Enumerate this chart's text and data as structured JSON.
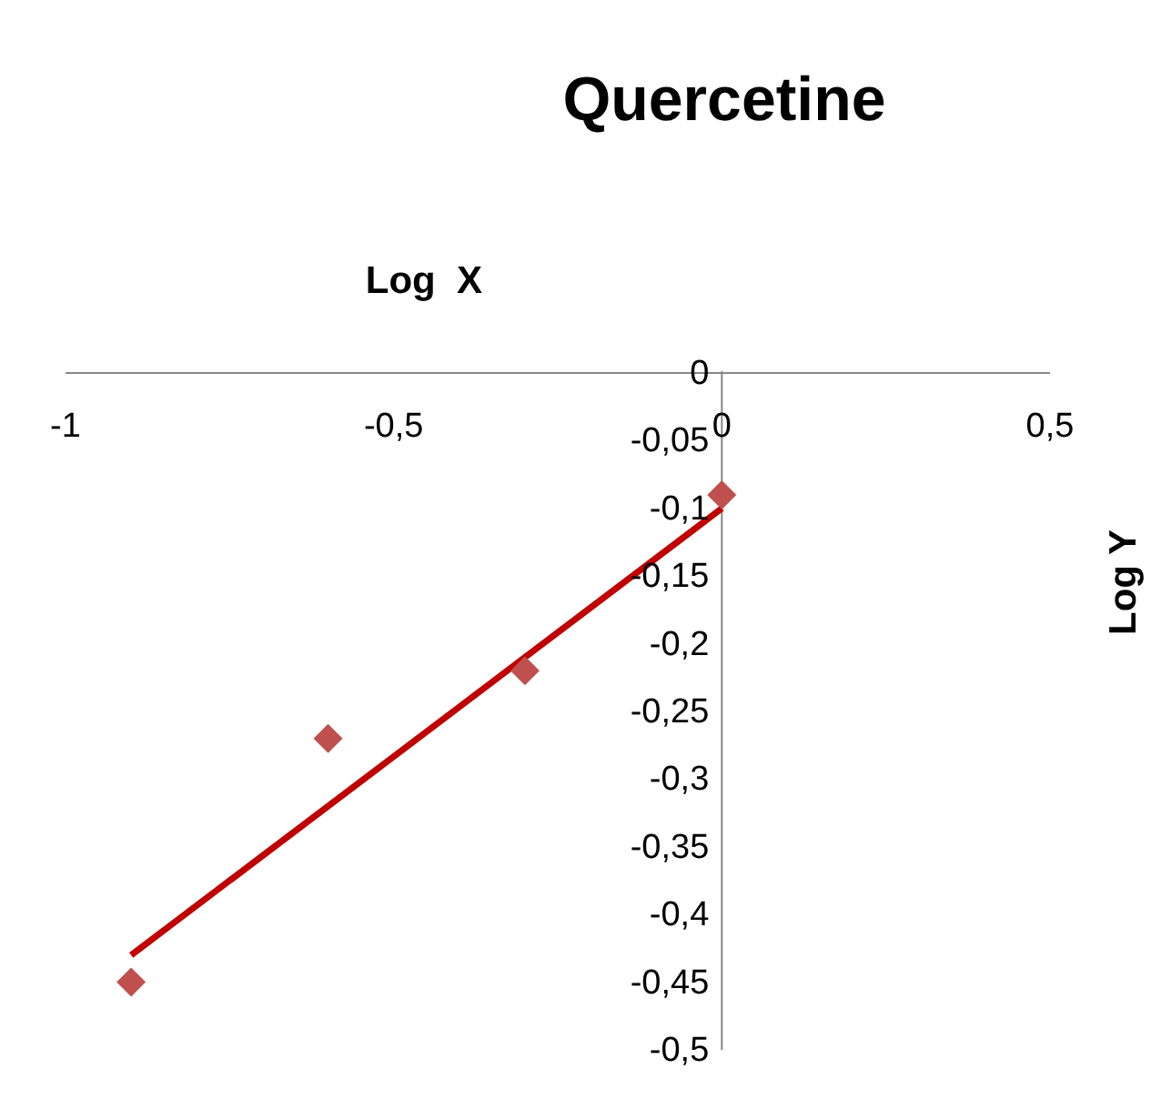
{
  "chart_data": {
    "type": "scatter",
    "title": "Quercetine",
    "xlabel": "Log  X",
    "ylabel": "Log Y",
    "xlim": [
      -1,
      0.5
    ],
    "xticks": [
      -1,
      {
        "value": -0.5,
        "label": "-0,5"
      },
      0,
      {
        "value": 0.5,
        "label": "0,5"
      }
    ],
    "ylim": [
      -0.5,
      0
    ],
    "yticks": [
      {
        "value": -0.5,
        "label": "-0,5"
      },
      {
        "value": -0.45,
        "label": "-0,45"
      },
      {
        "value": -0.4,
        "label": "-0,4"
      },
      {
        "value": -0.35,
        "label": "-0,35"
      },
      {
        "value": -0.3,
        "label": "-0,3"
      },
      {
        "value": -0.25,
        "label": "-0,25"
      },
      {
        "value": -0.2,
        "label": "-0,2"
      },
      {
        "value": -0.15,
        "label": "-0,15"
      },
      {
        "value": -0.1,
        "label": "-0,1"
      },
      {
        "value": -0.05,
        "label": "-0,05"
      },
      0
    ],
    "series": [
      {
        "marker": "diamond",
        "color": "#c0504d",
        "x": [
          -0.9,
          -0.6,
          -0.3,
          0
        ],
        "values": [
          -0.45,
          -0.27,
          -0.22,
          -0.09
        ]
      },
      {
        "type": "line",
        "color": "#c00000",
        "x": [
          -0.9,
          0
        ],
        "values": [
          -0.43,
          -0.1
        ]
      }
    ]
  }
}
